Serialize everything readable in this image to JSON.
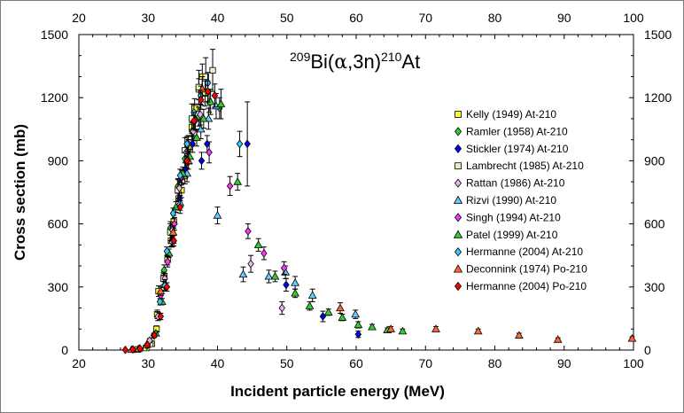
{
  "chart_data": {
    "type": "scatter",
    "title": {
      "mass_pre": "209",
      "elem_pre": "Bi(",
      "alpha": "α",
      "mid": ",3n)",
      "mass_post": "210",
      "elem_post": "At"
    },
    "xlabel": "Incident particle energy (MeV)",
    "ylabel": "Cross section (mb)",
    "xlim": [
      20,
      100
    ],
    "ylim": [
      0,
      1500
    ],
    "x_ticks": [
      20,
      30,
      40,
      50,
      60,
      70,
      80,
      90,
      100
    ],
    "y_ticks": [
      0,
      300,
      600,
      900,
      1200,
      1500
    ],
    "legend_position": "right-center",
    "series": [
      {
        "name": "Kelly (1949) At-210",
        "marker": "square",
        "color": "#ffff33",
        "points": [
          [
            28.5,
            3,
            0
          ],
          [
            29.7,
            10,
            0
          ],
          [
            30.5,
            30,
            6
          ],
          [
            31.2,
            100,
            15
          ],
          [
            31.3,
            170,
            20
          ],
          [
            31.5,
            280,
            25
          ],
          [
            32.3,
            350,
            25
          ],
          [
            32.8,
            430,
            25
          ],
          [
            33.3,
            520,
            30
          ],
          [
            33.7,
            610,
            30
          ],
          [
            34.4,
            720,
            35
          ],
          [
            34.8,
            760,
            35
          ],
          [
            35.3,
            830,
            40
          ],
          [
            35.8,
            960,
            40
          ],
          [
            36.3,
            1060,
            45
          ],
          [
            36.7,
            1150,
            45
          ],
          [
            37.3,
            1240,
            50
          ],
          [
            37.8,
            1300,
            60
          ],
          [
            38.2,
            1220,
            60
          ]
        ]
      },
      {
        "name": "Ramler (1958) At-210",
        "marker": "diamond",
        "color": "#33cc33",
        "points": [
          [
            32.3,
            380,
            25
          ],
          [
            33.2,
            580,
            30
          ],
          [
            34.3,
            780,
            35
          ],
          [
            35.3,
            910,
            40
          ],
          [
            36.3,
            1040,
            40
          ],
          [
            37.3,
            1110,
            45
          ],
          [
            38.8,
            1180,
            50
          ],
          [
            40.3,
            1150,
            50
          ]
        ]
      },
      {
        "name": "Stickler (1974) At-210",
        "marker": "diamond",
        "color": "#0000ff",
        "points": [
          [
            32.5,
            300,
            20
          ],
          [
            33.4,
            520,
            25
          ],
          [
            34.5,
            720,
            30
          ],
          [
            35.4,
            860,
            35
          ],
          [
            36.4,
            980,
            40
          ],
          [
            37.7,
            900,
            40
          ],
          [
            38.5,
            980,
            40
          ],
          [
            44.3,
            980,
            200
          ],
          [
            49.9,
            310,
            30
          ],
          [
            55.2,
            160,
            25
          ],
          [
            60.3,
            75,
            15
          ]
        ]
      },
      {
        "name": "Lambrecht (1985) At-210",
        "marker": "square",
        "color": "#e8f0c0",
        "points": [
          [
            30.3,
            30,
            10
          ],
          [
            32.2,
            340,
            30
          ],
          [
            33.2,
            560,
            40
          ],
          [
            34.3,
            760,
            50
          ],
          [
            35.3,
            950,
            60
          ],
          [
            36.3,
            1100,
            70
          ],
          [
            37.3,
            1250,
            80
          ],
          [
            38.3,
            1300,
            90
          ],
          [
            39.3,
            1330,
            100
          ]
        ]
      },
      {
        "name": "Rattan (1986) At-210",
        "marker": "diamond",
        "color": "#e8b4f0",
        "points": [
          [
            30.2,
            45,
            10
          ],
          [
            31.4,
            160,
            20
          ],
          [
            32.4,
            340,
            25
          ],
          [
            33.5,
            570,
            30
          ],
          [
            34.5,
            770,
            35
          ],
          [
            35.5,
            940,
            40
          ],
          [
            36.5,
            1040,
            45
          ],
          [
            37.5,
            1120,
            50
          ],
          [
            44.8,
            410,
            40
          ],
          [
            49.3,
            200,
            30
          ]
        ]
      },
      {
        "name": "Rizvi (1990) At-210",
        "marker": "triangle",
        "color": "#66ccff",
        "points": [
          [
            32.4,
            310,
            25
          ],
          [
            33.5,
            520,
            30
          ],
          [
            34.6,
            700,
            35
          ],
          [
            35.6,
            840,
            40
          ],
          [
            37.6,
            1050,
            45
          ],
          [
            38.7,
            1100,
            50
          ],
          [
            39.8,
            1160,
            60
          ],
          [
            40.0,
            640,
            40
          ],
          [
            43.7,
            360,
            35
          ],
          [
            47.4,
            350,
            30
          ],
          [
            49.8,
            370,
            30
          ],
          [
            51.2,
            320,
            30
          ],
          [
            53.7,
            260,
            30
          ],
          [
            59.9,
            170,
            20
          ]
        ]
      },
      {
        "name": "Singh (1994) At-210",
        "marker": "diamond",
        "color": "#ff33ff",
        "points": [
          [
            31.8,
            260,
            20
          ],
          [
            32.8,
            420,
            25
          ],
          [
            33.8,
            600,
            30
          ],
          [
            34.8,
            820,
            35
          ],
          [
            35.8,
            980,
            40
          ],
          [
            36.8,
            1090,
            45
          ],
          [
            38.8,
            940,
            50
          ],
          [
            41.8,
            780,
            45
          ],
          [
            44.4,
            565,
            35
          ],
          [
            46.7,
            460,
            30
          ],
          [
            49.6,
            390,
            30
          ]
        ]
      },
      {
        "name": "Patel (1999) At-210",
        "marker": "triangle",
        "color": "#33cc33",
        "points": [
          [
            31.1,
            80,
            10
          ],
          [
            32.0,
            230,
            15
          ],
          [
            33.0,
            460,
            20
          ],
          [
            34.0,
            680,
            25
          ],
          [
            35.0,
            840,
            30
          ],
          [
            36.0,
            920,
            35
          ],
          [
            37.0,
            1010,
            40
          ],
          [
            38.0,
            1100,
            45
          ],
          [
            39.0,
            1180,
            60
          ],
          [
            40.5,
            1170,
            70
          ],
          [
            42.9,
            800,
            40
          ],
          [
            45.9,
            500,
            30
          ],
          [
            48.3,
            350,
            25
          ],
          [
            51.2,
            270,
            20
          ],
          [
            53.3,
            210,
            20
          ],
          [
            56.0,
            180,
            15
          ],
          [
            58.0,
            155,
            15
          ],
          [
            60.3,
            120,
            15
          ],
          [
            62.3,
            110,
            12
          ],
          [
            64.5,
            95,
            10
          ],
          [
            66.7,
            90,
            10
          ]
        ]
      },
      {
        "name": "Hermanne (2004) At-210",
        "marker": "diamond",
        "color": "#33ccff",
        "points": [
          [
            29.8,
            20,
            5
          ],
          [
            30.8,
            70,
            10
          ],
          [
            31.7,
            230,
            15
          ],
          [
            32.7,
            470,
            20
          ],
          [
            33.6,
            650,
            25
          ],
          [
            34.6,
            830,
            30
          ],
          [
            35.6,
            980,
            35
          ],
          [
            36.6,
            1130,
            40
          ],
          [
            37.6,
            1210,
            45
          ],
          [
            38.6,
            1270,
            50
          ],
          [
            43.2,
            980,
            60
          ]
        ]
      },
      {
        "name": "Deconnink (1974) Po-210",
        "marker": "triangle",
        "color": "#ff6633",
        "points": [
          [
            27.6,
            2,
            0
          ],
          [
            28.6,
            6,
            0
          ],
          [
            29.8,
            25,
            5
          ],
          [
            31.8,
            280,
            20
          ],
          [
            33.6,
            560,
            30
          ],
          [
            35.8,
            900,
            40
          ],
          [
            37.8,
            1240,
            60
          ],
          [
            57.7,
            200,
            25
          ],
          [
            65.0,
            100,
            12
          ],
          [
            71.5,
            100,
            12
          ],
          [
            77.6,
            90,
            10
          ],
          [
            83.5,
            70,
            10
          ],
          [
            89.1,
            50,
            8
          ],
          [
            99.8,
            55,
            8
          ]
        ]
      },
      {
        "name": "Hermanne (2004) Po-210",
        "marker": "diamond",
        "color": "#ff0000",
        "points": [
          [
            26.7,
            1,
            0
          ],
          [
            27.8,
            3,
            0
          ],
          [
            28.8,
            8,
            0
          ],
          [
            29.9,
            25,
            5
          ],
          [
            30.9,
            70,
            10
          ],
          [
            31.8,
            160,
            15
          ],
          [
            32.7,
            300,
            20
          ],
          [
            33.7,
            520,
            25
          ],
          [
            34.6,
            680,
            30
          ],
          [
            35.6,
            900,
            35
          ],
          [
            36.6,
            1090,
            40
          ],
          [
            37.6,
            1190,
            45
          ],
          [
            38.6,
            1230,
            50
          ],
          [
            39.6,
            1210,
            55
          ]
        ]
      }
    ]
  }
}
